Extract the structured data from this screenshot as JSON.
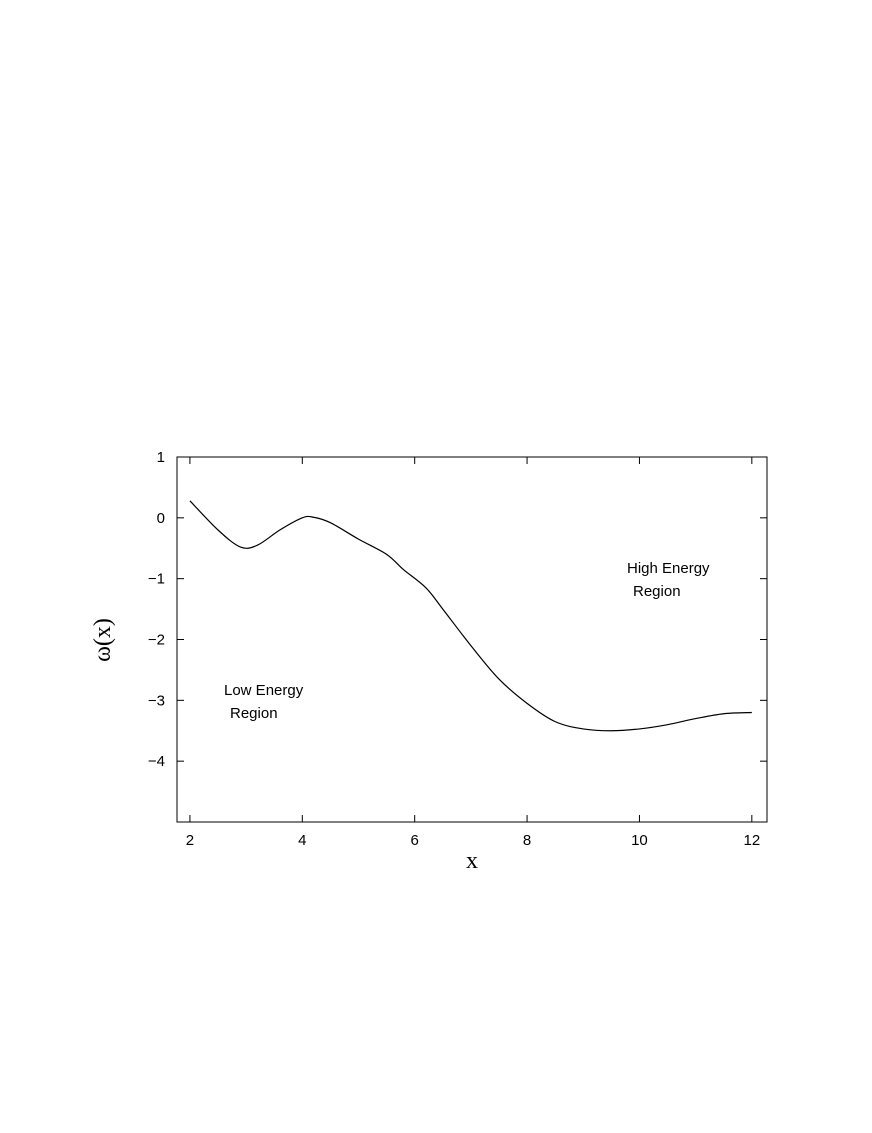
{
  "chart_data": {
    "type": "line",
    "xlabel": "x",
    "ylabel": "ω(x)",
    "annotations": [
      [
        "Low Energy",
        "Region"
      ],
      [
        "High Energy",
        "Region"
      ]
    ],
    "x": [
      2,
      2.5,
      2.9,
      3.2,
      3.6,
      4.0,
      4.2,
      4.5,
      5.0,
      5.5,
      5.8,
      6.2,
      6.5,
      7.0,
      7.5,
      8.0,
      8.5,
      9.0,
      9.5,
      10.0,
      10.5,
      11.0,
      11.5,
      12.0
    ],
    "series": [
      {
        "color": "#000000",
        "values": [
          0.28,
          -0.2,
          -0.48,
          -0.45,
          -0.2,
          0.0,
          0.01,
          -0.08,
          -0.35,
          -0.6,
          -0.85,
          -1.15,
          -1.5,
          -2.1,
          -2.65,
          -3.05,
          -3.35,
          -3.47,
          -3.5,
          -3.47,
          -3.4,
          -3.3,
          -3.22,
          -3.2
        ]
      }
    ],
    "xlim": [
      1.77,
      12.27
    ],
    "ylim": [
      -5,
      1
    ],
    "xticks": [
      2,
      4,
      6,
      8,
      10,
      12
    ],
    "yticks": [
      1,
      0,
      {
        "value": -1,
        "label": "−1"
      },
      {
        "value": -2,
        "label": "−2"
      },
      {
        "value": -3,
        "label": "−3"
      },
      {
        "value": -4,
        "label": "−4"
      }
    ],
    "grid": false
  }
}
